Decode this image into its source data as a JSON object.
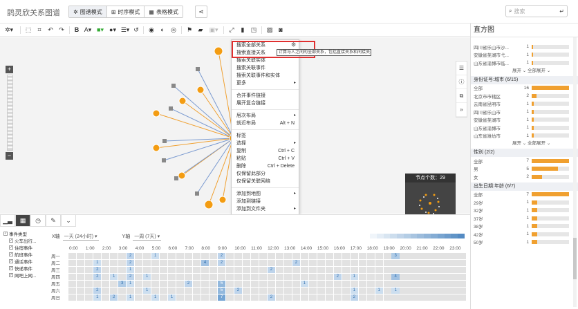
{
  "app": {
    "title": "鹍灵欣关系图谱"
  },
  "modes": [
    {
      "label": "图谱模式"
    },
    {
      "label": "时序模式"
    },
    {
      "label": "表格模式"
    }
  ],
  "search": {
    "placeholder": "搜索"
  },
  "toolbar": {
    "bold": "B",
    "font": "A"
  },
  "context_menu": {
    "items": [
      {
        "label": "搜索全部关系",
        "key": ""
      },
      {
        "label": "搜索直接关系",
        "key": ""
      },
      {
        "label": "搜索关联实体",
        "key": ""
      },
      {
        "label": "搜索关联事件",
        "key": ""
      },
      {
        "label": "搜索关联事件和实体",
        "key": ""
      },
      {
        "label": "更多",
        "key": ""
      },
      {
        "sep": true
      },
      {
        "label": "合并事件链接",
        "key": ""
      },
      {
        "label": "展开复合链接",
        "key": ""
      },
      {
        "sep": true
      },
      {
        "label": "层次布局",
        "key": ""
      },
      {
        "label": "就近布局",
        "key": "Alt + N"
      },
      {
        "sep": true
      },
      {
        "label": "标签",
        "key": ""
      },
      {
        "label": "选择",
        "key": ""
      },
      {
        "label": "复制",
        "key": "Ctrl + C"
      },
      {
        "label": "粘贴",
        "key": "Ctrl + V"
      },
      {
        "label": "删除",
        "key": "Ctrl + Delete"
      },
      {
        "label": "仅保留此部分",
        "key": ""
      },
      {
        "label": "仅保留关联网络",
        "key": ""
      },
      {
        "sep": true
      },
      {
        "label": "添加到地图",
        "key": ""
      },
      {
        "label": "添加到链接",
        "key": ""
      },
      {
        "label": "添加到文件夹",
        "key": ""
      }
    ],
    "tooltip": "计算与人之间的全部关系，包括直接关系和间接关系"
  },
  "navigator": {
    "title": "节点个数：29"
  },
  "event_tree": {
    "root": "事件类型",
    "items": [
      "火车出行...",
      "住宿事件",
      "航班事件",
      "通话事件",
      "快递事件",
      "网吧上网..."
    ]
  },
  "timeline": {
    "x_label": "X轴",
    "x_value": "一天 (24小时)",
    "y_label": "Y轴",
    "y_value": "一周 (7天)",
    "hours": [
      "0:00",
      "1:00",
      "2:00",
      "3:00",
      "4:00",
      "5:00",
      "6:00",
      "7:00",
      "8:00",
      "9:00",
      "10:00",
      "11:00",
      "12:00",
      "13:00",
      "14:00",
      "15:00",
      "16:00",
      "17:00",
      "18:00",
      "19:00",
      "20:00",
      "21:00",
      "22:00",
      "23:00"
    ],
    "days": [
      "周一",
      "周二",
      "周三",
      "周四",
      "周五",
      "周六",
      "周日"
    ],
    "cells": [
      {
        "d": 0,
        "c": 7,
        "v": "2"
      },
      {
        "d": 0,
        "c": 10,
        "v": "1"
      },
      {
        "d": 0,
        "c": 18,
        "v": "2"
      },
      {
        "d": 0,
        "c": 39,
        "v": "3"
      },
      {
        "d": 1,
        "c": 3,
        "v": "1"
      },
      {
        "d": 1,
        "c": 7,
        "v": "2"
      },
      {
        "d": 1,
        "c": 16,
        "v": "4"
      },
      {
        "d": 1,
        "c": 18,
        "v": "2"
      },
      {
        "d": 1,
        "c": 27,
        "v": "2"
      },
      {
        "d": 2,
        "c": 3,
        "v": "2"
      },
      {
        "d": 2,
        "c": 7,
        "v": "1"
      },
      {
        "d": 2,
        "c": 24,
        "v": "2"
      },
      {
        "d": 3,
        "c": 3,
        "v": "2"
      },
      {
        "d": 3,
        "c": 5,
        "v": "1"
      },
      {
        "d": 3,
        "c": 7,
        "v": "2"
      },
      {
        "d": 3,
        "c": 9,
        "v": "1"
      },
      {
        "d": 3,
        "c": 32,
        "v": "2"
      },
      {
        "d": 3,
        "c": 34,
        "v": "1"
      },
      {
        "d": 3,
        "c": 39,
        "v": "4"
      },
      {
        "d": 4,
        "c": 6,
        "v": "3"
      },
      {
        "d": 4,
        "c": 7,
        "v": "1"
      },
      {
        "d": 4,
        "c": 14,
        "v": "2"
      },
      {
        "d": 4,
        "c": 18,
        "v": "5"
      },
      {
        "d": 4,
        "c": 28,
        "v": "1"
      },
      {
        "d": 5,
        "c": 3,
        "v": "2"
      },
      {
        "d": 5,
        "c": 9,
        "v": "1"
      },
      {
        "d": 5,
        "c": 18,
        "v": "5"
      },
      {
        "d": 5,
        "c": 20,
        "v": "2"
      },
      {
        "d": 5,
        "c": 34,
        "v": "1"
      },
      {
        "d": 5,
        "c": 37,
        "v": "1"
      },
      {
        "d": 5,
        "c": 39,
        "v": "1"
      },
      {
        "d": 6,
        "c": 3,
        "v": "1"
      },
      {
        "d": 6,
        "c": 5,
        "v": "2"
      },
      {
        "d": 6,
        "c": 7,
        "v": "1"
      },
      {
        "d": 6,
        "c": 10,
        "v": "1"
      },
      {
        "d": 6,
        "c": 12,
        "v": "1"
      },
      {
        "d": 6,
        "c": 18,
        "v": "7"
      },
      {
        "d": 6,
        "c": 24,
        "v": "2"
      },
      {
        "d": 6,
        "c": 34,
        "v": "2"
      }
    ]
  },
  "histogram": {
    "title": "直方图",
    "groups": [
      {
        "title": "",
        "rows": [
          {
            "label": "四川省乐山市沙...",
            "count": "1",
            "frac": 0.04
          },
          {
            "label": "安徽省芜湖市弋...",
            "count": "1",
            "frac": 0.04
          },
          {
            "label": "山东省淄博市临...",
            "count": "1",
            "frac": 0.04
          }
        ],
        "more": "展开 ⌄   全部展开 ⌄"
      },
      {
        "title": "身份证号:城市 (6/15)",
        "rows": [
          {
            "label": "全部",
            "count": "16",
            "frac": 1
          },
          {
            "label": "北京市市辖区",
            "count": "2",
            "frac": 0.13
          },
          {
            "label": "云南省昆明市",
            "count": "1",
            "frac": 0.06
          },
          {
            "label": "四川省乐山市",
            "count": "1",
            "frac": 0.06
          },
          {
            "label": "安徽省芜湖市",
            "count": "1",
            "frac": 0.06
          },
          {
            "label": "山东省淄博市",
            "count": "1",
            "frac": 0.06
          },
          {
            "label": "山东省潍坊市",
            "count": "1",
            "frac": 0.06
          }
        ],
        "more": "展开 ⌄   全部展开 ⌄"
      },
      {
        "title": "性别 (2/2)",
        "rows": [
          {
            "label": "全部",
            "count": "7",
            "frac": 1
          },
          {
            "label": "男",
            "count": "5",
            "frac": 0.71
          },
          {
            "label": "女",
            "count": "2",
            "frac": 0.28
          }
        ]
      },
      {
        "title": "出生日期:年龄 (6/7)",
        "rows": [
          {
            "label": "全部",
            "count": "7",
            "frac": 1
          },
          {
            "label": "29岁",
            "count": "1",
            "frac": 0.14
          },
          {
            "label": "32岁",
            "count": "1",
            "frac": 0.14
          },
          {
            "label": "37岁",
            "count": "1",
            "frac": 0.14
          },
          {
            "label": "38岁",
            "count": "1",
            "frac": 0.14
          },
          {
            "label": "42岁",
            "count": "1",
            "frac": 0.14
          },
          {
            "label": "50岁",
            "count": "1",
            "frac": 0.14
          }
        ]
      }
    ]
  },
  "colors": {
    "accent": "#f0a030",
    "node": "#f39c12",
    "heat": "#a9c6e2",
    "highlight": "#e03030"
  }
}
